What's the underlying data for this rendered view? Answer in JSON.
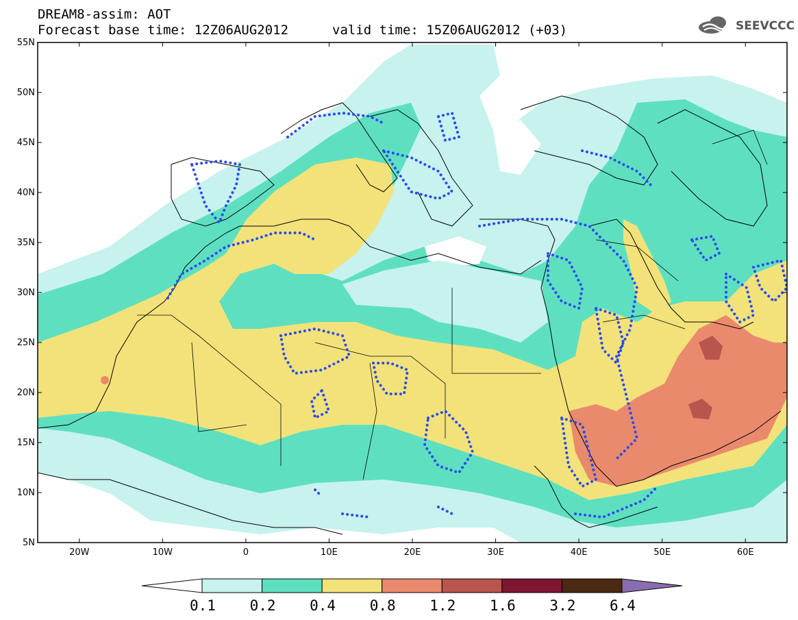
{
  "header": {
    "title": "DREAM8-assim: AOT",
    "base_time": "Forecast base time: 12Z06AUG2012",
    "valid_time": "valid time: 15Z06AUG2012 (+03)",
    "logo_text": "SEEVCCC"
  },
  "map": {
    "lat_labels": [
      "55N",
      "50N",
      "45N",
      "40N",
      "35N",
      "30N",
      "25N",
      "20N",
      "15N",
      "10N",
      "5N"
    ],
    "lon_labels": [
      "20W",
      "10W",
      "0",
      "10E",
      "20E",
      "30E",
      "40E",
      "50E",
      "60E"
    ],
    "lat_range": [
      5,
      55
    ],
    "lon_range": [
      -25,
      65
    ]
  },
  "colorbar": {
    "labels": [
      "0.1",
      "0.2",
      "0.4",
      "0.8",
      "1.2",
      "1.6",
      "3.2",
      "6.4"
    ],
    "colors": [
      "#c7f2ee",
      "#5ee0c0",
      "#f3e27a",
      "#ea8a6c",
      "#b8554d",
      "#7d1630",
      "#4a2a14",
      "#8a6cb0"
    ]
  }
}
